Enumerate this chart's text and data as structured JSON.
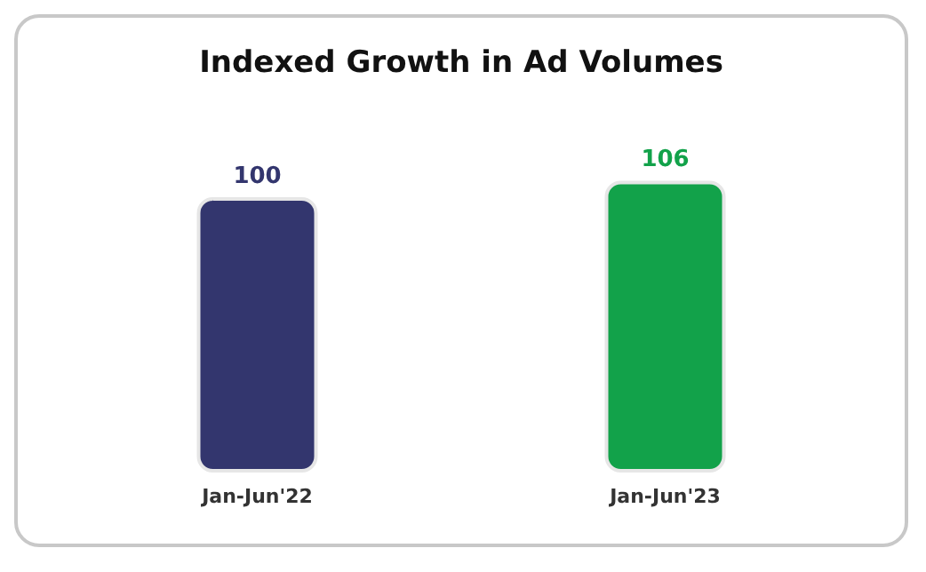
{
  "chart_data": {
    "type": "bar",
    "title": "Indexed Growth in Ad Volumes",
    "categories": [
      "Jan-Jun'22",
      "Jan-Jun'23"
    ],
    "values": [
      100,
      106
    ],
    "colors": [
      "#33366e",
      "#12a24a"
    ],
    "data_labels": true
  }
}
